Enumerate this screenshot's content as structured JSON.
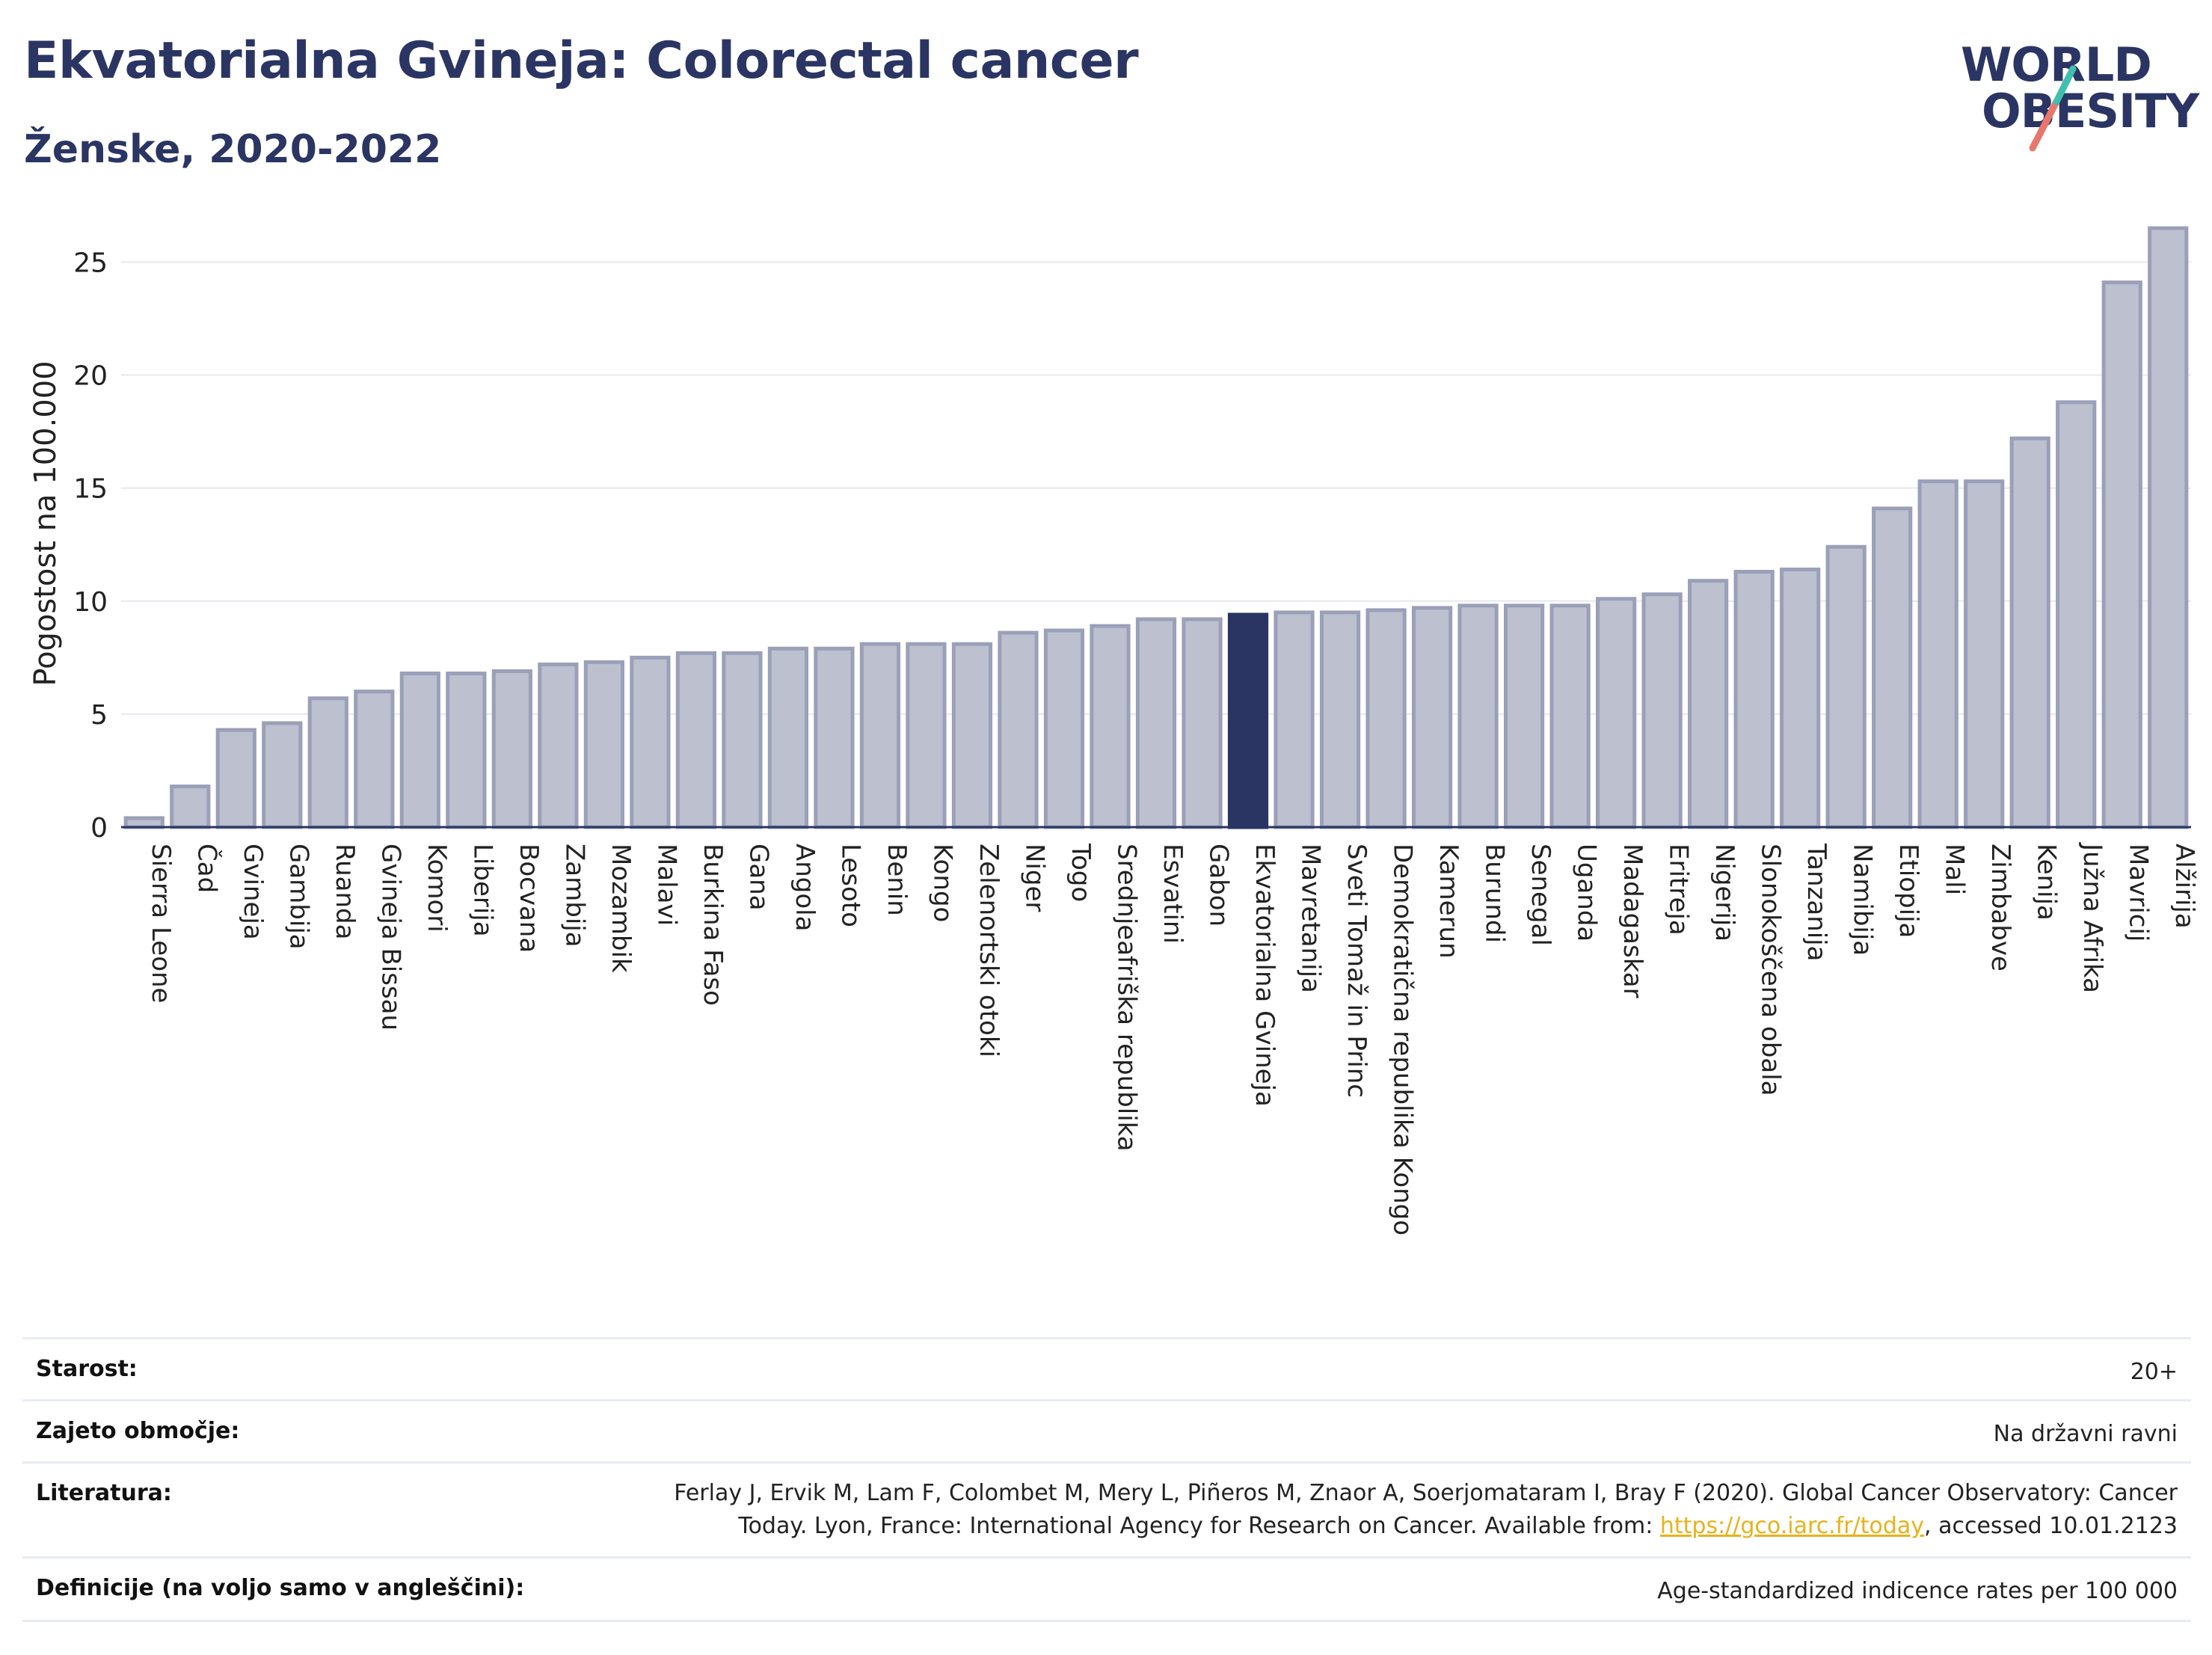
{
  "header": {
    "title": "Ekvatorialna Gvineja: Colorectal cancer",
    "subtitle": "Ženske, 2020-2022"
  },
  "logo": {
    "line1": "WORLD",
    "line2": "OBESITY"
  },
  "colors": {
    "bar": "#bcc0cf",
    "bar_border": "#9aa0b8",
    "highlight": "#2b3563",
    "title": "#2b3563"
  },
  "chart_data": {
    "type": "bar",
    "ylabel": "Pogostost na 100.000",
    "ylim": [
      0,
      27
    ],
    "yticks": [
      0,
      5,
      10,
      15,
      20,
      25
    ],
    "grid": true,
    "highlight": "Ekvatorialna Gvineja",
    "categories": [
      "Sierra Leone",
      "Čad",
      "Gvineja",
      "Gambija",
      "Ruanda",
      "Gvineja Bissau",
      "Komori",
      "Liberija",
      "Bocvana",
      "Zambija",
      "Mozambik",
      "Malavi",
      "Burkina Faso",
      "Gana",
      "Angola",
      "Lesoto",
      "Benin",
      "Kongo",
      "Zelenortski otoki",
      "Niger",
      "Togo",
      "Srednjeafriška republika",
      "Esvatini",
      "Gabon",
      "Ekvatorialna Gvineja",
      "Mavretanija",
      "Sveti Tomaž in Princ",
      "Demokratična republika Kongo",
      "Kamerun",
      "Burundi",
      "Senegal",
      "Uganda",
      "Madagaskar",
      "Eritreja",
      "Nigerija",
      "Slonokoščena obala",
      "Tanzanija",
      "Namibija",
      "Etiopija",
      "Mali",
      "Zimbabve",
      "Kenija",
      "Južna Afrika",
      "Mavricij",
      "Alžirija"
    ],
    "values": [
      0.4,
      1.8,
      4.3,
      4.6,
      5.7,
      6.0,
      6.8,
      6.8,
      6.9,
      7.2,
      7.3,
      7.5,
      7.7,
      7.7,
      7.9,
      7.9,
      8.1,
      8.1,
      8.1,
      8.6,
      8.7,
      8.9,
      9.2,
      9.2,
      9.4,
      9.5,
      9.5,
      9.6,
      9.7,
      9.8,
      9.8,
      9.8,
      10.1,
      10.3,
      10.9,
      11.3,
      11.4,
      12.4,
      14.1,
      15.3,
      15.3,
      17.2,
      18.8,
      24.1,
      26.5
    ]
  },
  "footer": {
    "age_label": "Starost:",
    "age_value": "20+",
    "coverage_label": "Zajeto območje:",
    "coverage_value": "Na državni ravni",
    "ref_label": "Literatura:",
    "ref_text_1": "Ferlay J, Ervik M, Lam F, Colombet M, Mery L, Piñeros M, Znaor A, Soerjomataram I, Bray F (2020). Global Cancer Observatory: Cancer Today. Lyon, France: International Agency for Research on Cancer. Available from: ",
    "ref_link": "https://gco.iarc.fr/today",
    "ref_text_2": ", accessed 10.01.2123",
    "def_label": "Definicije (na voljo samo v angleščini):",
    "def_value": "Age-standardized indicence rates per 100 000"
  }
}
